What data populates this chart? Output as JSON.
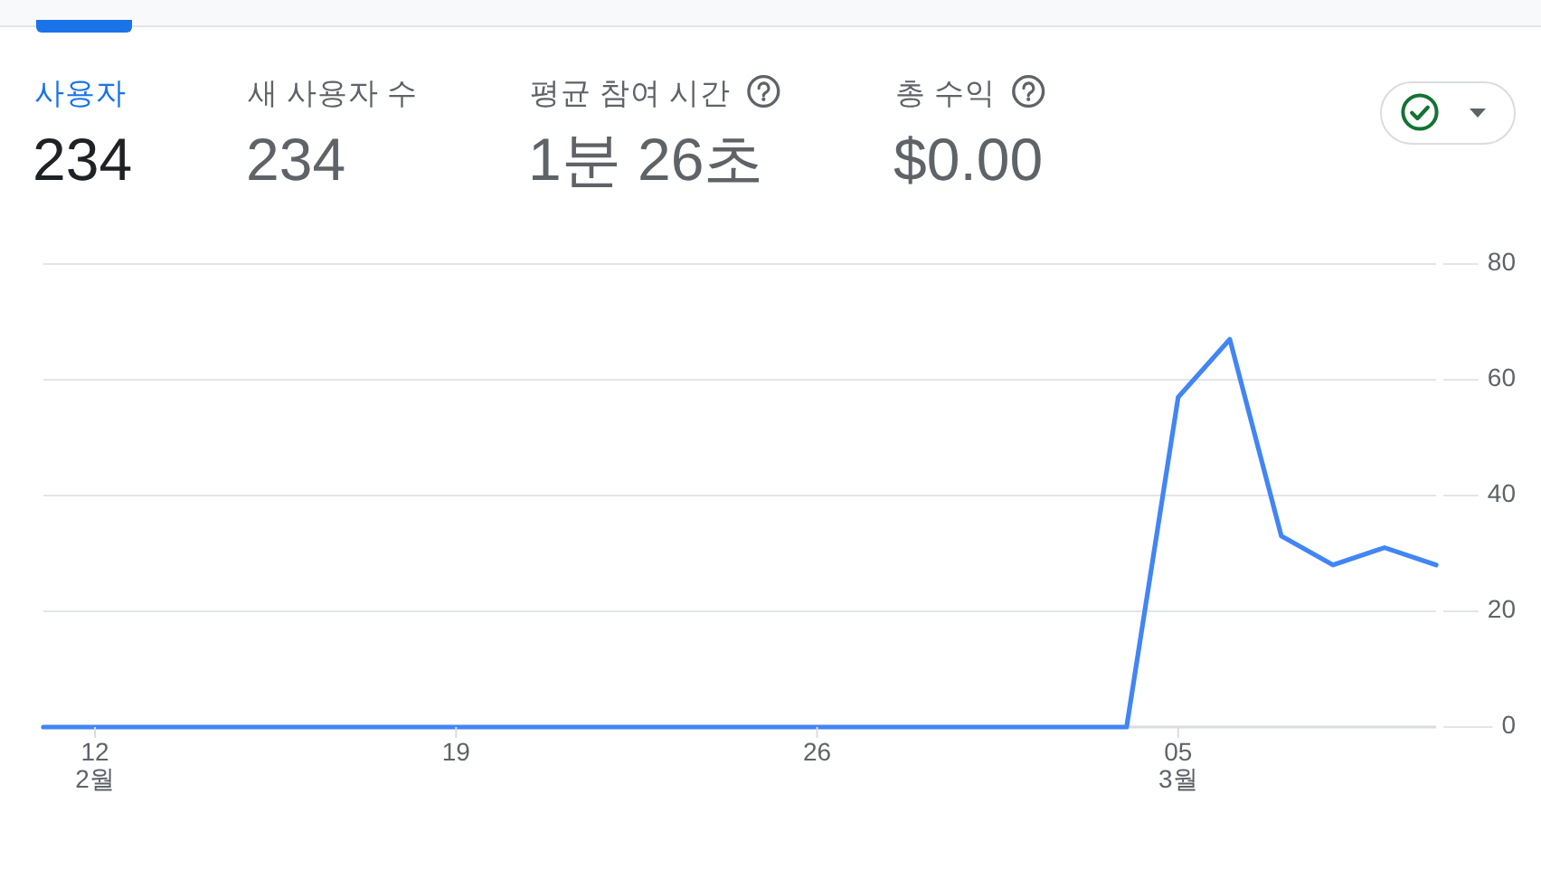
{
  "chart_data": [
    {
      "type": "other",
      "annotations": [
        "사용자",
        "234",
        "새 사용자 수",
        "234",
        "평균 참여 시간",
        "1분 26초",
        "총 수익",
        "$0.00"
      ]
    },
    {
      "type": "line",
      "color": "#4285f4",
      "x": [
        "--02-11",
        "--02-12",
        "--02-13",
        "--02-14",
        "--02-15",
        "--02-16",
        "--02-17",
        "--02-18",
        "--02-19",
        "--02-20",
        "--02-21",
        "--02-22",
        "--02-23",
        "--02-24",
        "--02-25",
        "--02-26",
        "--02-27",
        "--02-28",
        "--03-01",
        "--03-02",
        "--03-03",
        "--03-04",
        "--03-05",
        "--03-06",
        "--03-07",
        "--03-08",
        "--03-09",
        "--03-10"
      ],
      "values": [
        0,
        0,
        0,
        0,
        0,
        0,
        0,
        0,
        0,
        0,
        0,
        0,
        0,
        0,
        0,
        0,
        0,
        0,
        0,
        0,
        0,
        0,
        57,
        67,
        33,
        28,
        31,
        28
      ],
      "xlim": [
        "--02-11",
        "--03-10"
      ],
      "xticks": [
        {
          "value": "--02-12",
          "label": "12\n2월"
        },
        {
          "value": "--02-19",
          "label": "19"
        },
        {
          "value": "--02-26",
          "label": "26"
        },
        {
          "value": "--03-05",
          "label": "05\n3월"
        }
      ],
      "ylim": [
        0,
        80
      ],
      "yticks": [
        0,
        20,
        40,
        60,
        80
      ],
      "grid": "y"
    }
  ]
}
